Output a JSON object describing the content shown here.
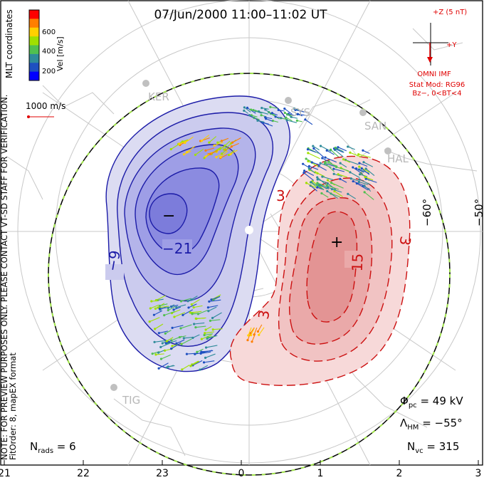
{
  "title": "07/Jun/2000 11:00–11:02 UT",
  "side_note": "NOTE: FOR PREVIEW PURPOSES ONLY. PLEASE CONTACT VT-SD STAFF FOR VERIFICATION.",
  "side_note2": "FitOrder: 8, mapEX format",
  "coord_label": "MLT coordinates",
  "colorbar": {
    "label": "Vel [m/s]",
    "ticks": [
      "600",
      "400",
      "200"
    ],
    "colors": [
      "#ff0000",
      "#ff7f00",
      "#ffd000",
      "#a0e000",
      "#50c050",
      "#2e8b9a",
      "#1e50c0",
      "#0000ff"
    ]
  },
  "scale_label": "1000 m/s",
  "imf": {
    "z_label": "+Z (5 nT)",
    "y_label": "+Y",
    "source": "OMNI IMF",
    "model": "Stat Mod: RG96",
    "condition": "Bz−, 0<BT<4"
  },
  "stations": [
    "KER",
    "SYS",
    "SAN",
    "HAL",
    "TIG"
  ],
  "lat_labels": [
    "−60°",
    "−50°"
  ],
  "stats": {
    "phi_sym": "Φ",
    "phi_sub": "pc",
    "phi_val": " = 49 kV",
    "lam_sym": "Λ",
    "lam_sub": "HM",
    "lam_val": " = −55°",
    "nvc_sym": "N",
    "nvc_sub": "vc",
    "nvc_val": " = 315",
    "nrads_sym": "N",
    "nrads_sub": "rads",
    "nrads_val": " = 6"
  },
  "mlt_ticks": [
    "21",
    "22",
    "23",
    "0",
    "1",
    "2",
    "3"
  ],
  "chart_data": {
    "type": "polar convection map",
    "title": "07/Jun/2000 11:00–11:02 UT",
    "contour_labels": {
      "negative": [
        "−21",
        "−9"
      ],
      "positive": [
        "3",
        "15",
        "3",
        "3"
      ]
    },
    "extrema_markers": [
      "−",
      "+"
    ],
    "cross_polar_cap_potential_kV": 49,
    "heppner_maynard_boundary_deg": -55,
    "n_vectors": 315,
    "n_radars": 6,
    "velocity_range_m_s": [
      0,
      700
    ],
    "colorbar_ticks": [
      200,
      400,
      600
    ],
    "x_axis_mlt": [
      "21",
      "22",
      "23",
      "0",
      "1",
      "2",
      "3"
    ],
    "latitude_rings_deg": [
      -60,
      -50
    ]
  }
}
